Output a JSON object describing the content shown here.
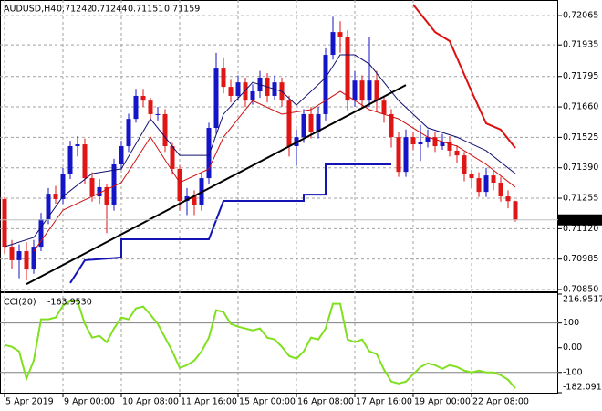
{
  "chart_data": [
    {
      "type": "candlestick",
      "title": "AUDUSD,H4",
      "x": [
        "5 Apr 2019",
        null,
        null,
        null,
        null,
        null,
        null,
        null,
        "9 Apr 00:00",
        null,
        null,
        null,
        null,
        null,
        null,
        null,
        "10 Apr 08:00",
        null,
        null,
        null,
        null,
        null,
        null,
        null,
        "11 Apr 16:00",
        null,
        null,
        null,
        null,
        null,
        null,
        null,
        "15 Apr 00:00",
        null,
        null,
        null,
        null,
        null,
        null,
        null,
        "16 Apr 08:00",
        null,
        null,
        null,
        null,
        null,
        null,
        null,
        "17 Apr 16:00",
        null,
        null,
        null,
        null,
        null,
        null,
        null,
        "19 Apr 00:00",
        null,
        null,
        null,
        null,
        null,
        null,
        null,
        "22 Apr 08:00",
        null,
        null,
        null,
        null,
        null,
        null
      ],
      "open": [
        0.71251,
        0.7104,
        0.7098,
        0.7102,
        0.70939,
        0.7104,
        0.71162,
        0.71275,
        0.71251,
        0.71364,
        0.71486,
        0.71494,
        0.71344,
        0.71263,
        0.71304,
        0.71223,
        0.71405,
        0.71486,
        0.71607,
        0.71709,
        0.71688,
        0.71628,
        0.71628,
        0.71486,
        0.71385,
        0.71243,
        0.71263,
        0.71223,
        0.71344,
        0.71567,
        0.7183,
        0.71749,
        0.71709,
        0.71769,
        0.71688,
        0.71729,
        0.7179,
        0.71709,
        0.71769,
        0.71688,
        0.71486,
        0.71526,
        0.71628,
        0.71547,
        0.71628,
        0.71891,
        0.71992,
        0.71972,
        0.71688,
        0.71777,
        0.71688,
        0.71777,
        0.71688,
        0.71628,
        0.71526,
        0.71372,
        0.71526,
        0.71494,
        0.71506,
        0.71526,
        0.71486,
        0.71506,
        0.71466,
        0.71445,
        0.71364,
        0.71344,
        0.71283,
        0.71356,
        0.71324,
        0.71263,
        0.71242
      ],
      "high": [
        0.7126,
        0.7107,
        0.7105,
        0.7106,
        0.7107,
        0.7119,
        0.713,
        0.7131,
        0.7139,
        0.7151,
        0.7153,
        0.7152,
        0.7137,
        0.7134,
        0.7132,
        0.7143,
        0.7151,
        0.7163,
        0.7174,
        0.7174,
        0.717,
        0.7166,
        0.7165,
        0.715,
        0.714,
        0.713,
        0.7129,
        0.7137,
        0.7159,
        0.719,
        0.7188,
        0.7178,
        0.718,
        0.7179,
        0.7176,
        0.7182,
        0.7181,
        0.718,
        0.7179,
        0.7171,
        0.7156,
        0.7165,
        0.7166,
        0.7166,
        0.7192,
        0.7206,
        0.7204,
        0.72,
        0.7182,
        0.718,
        0.7197,
        0.7182,
        0.7171,
        0.7165,
        0.7155,
        0.7156,
        0.7155,
        0.7158,
        0.7156,
        0.7155,
        0.7154,
        0.7153,
        0.7149,
        0.7146,
        0.7138,
        0.7137,
        0.7139,
        0.7138,
        0.7135,
        0.7129,
        0.71244
      ],
      "low": [
        0.7101,
        0.7094,
        0.709,
        0.7089,
        0.7092,
        0.7102,
        0.7114,
        0.7123,
        0.7123,
        0.7134,
        0.7144,
        0.7132,
        0.7124,
        0.7123,
        0.711,
        0.712,
        0.7138,
        0.7146,
        0.7159,
        0.7166,
        0.716,
        0.716,
        0.7146,
        0.7136,
        0.712,
        0.7118,
        0.7118,
        0.712,
        0.7132,
        0.7154,
        0.7172,
        0.7168,
        0.7169,
        0.7166,
        0.7167,
        0.717,
        0.7168,
        0.7169,
        0.7166,
        0.7144,
        0.714,
        0.715,
        0.7152,
        0.7152,
        0.716,
        0.7187,
        0.719,
        0.7164,
        0.7166,
        0.7166,
        0.7166,
        0.7164,
        0.7159,
        0.7148,
        0.7135,
        0.7135,
        0.7147,
        0.7142,
        0.7148,
        0.7146,
        0.7147,
        0.7144,
        0.7141,
        0.7133,
        0.713,
        0.7126,
        0.7126,
        0.7129,
        0.7124,
        0.7121,
        0.71151
      ],
      "close": [
        0.7104,
        0.7098,
        0.7102,
        0.70939,
        0.7104,
        0.71162,
        0.71275,
        0.71251,
        0.71364,
        0.71486,
        0.71494,
        0.71344,
        0.71263,
        0.71304,
        0.71223,
        0.71405,
        0.71486,
        0.71607,
        0.71709,
        0.71688,
        0.71628,
        0.71628,
        0.71486,
        0.71385,
        0.71243,
        0.71263,
        0.71223,
        0.71344,
        0.71567,
        0.7183,
        0.71749,
        0.71709,
        0.71769,
        0.71688,
        0.71729,
        0.7179,
        0.71709,
        0.71769,
        0.71688,
        0.71486,
        0.71526,
        0.71628,
        0.71547,
        0.71628,
        0.71891,
        0.71992,
        0.71972,
        0.71688,
        0.71777,
        0.71688,
        0.71777,
        0.71688,
        0.71628,
        0.71526,
        0.71372,
        0.71526,
        0.71494,
        0.71506,
        0.71526,
        0.71486,
        0.71506,
        0.71466,
        0.71445,
        0.71364,
        0.71344,
        0.71283,
        0.71356,
        0.71324,
        0.71263,
        0.71242,
        0.71159
      ],
      "up_color": "#1515c8",
      "down_color": "#e01515",
      "lines": [
        {
          "color": "#10106e",
          "width": 1,
          "x": [
            0,
            4,
            8,
            12,
            16,
            20,
            24,
            28,
            30,
            34,
            38,
            40,
            44,
            46,
            48,
            50,
            54,
            58,
            62,
            66,
            70
          ],
          "values": [
            0.7104,
            0.71081,
            0.71263,
            0.71364,
            0.71385,
            0.71607,
            0.71445,
            0.71445,
            0.71628,
            0.71769,
            0.71729,
            0.71668,
            0.7179,
            0.71891,
            0.71891,
            0.7185,
            0.71688,
            0.71567,
            0.71526,
            0.71466,
            0.71364
          ]
        },
        {
          "color": "#d01010",
          "width": 1,
          "x": [
            4,
            8,
            12,
            16,
            20,
            24,
            28,
            30,
            34,
            38,
            42,
            46,
            50,
            54,
            58,
            62,
            66,
            70
          ],
          "values": [
            0.7102,
            0.71202,
            0.71263,
            0.71324,
            0.71526,
            0.71324,
            0.71385,
            0.71526,
            0.71688,
            0.71628,
            0.71648,
            0.71729,
            0.71648,
            0.71607,
            0.71526,
            0.71486,
            0.71405,
            0.71304
          ]
        },
        {
          "color": "#dd1010",
          "width": 2,
          "x": [
            56,
            59,
            61,
            64,
            66,
            68,
            70
          ],
          "values": [
            0.72114,
            0.71992,
            0.71952,
            0.71729,
            0.71587,
            0.71559,
            0.71478
          ]
        },
        {
          "color": "#1414b4",
          "width": 2,
          "x": [
            9,
            11,
            16,
            16,
            28,
            30,
            41,
            41,
            44,
            44,
            53
          ],
          "values": [
            0.70879,
            0.7098,
            0.70992,
            0.71073,
            0.71073,
            0.71243,
            0.71243,
            0.71271,
            0.71271,
            0.71405,
            0.71405
          ]
        },
        {
          "color": "#000000",
          "width": 2,
          "x": [
            3,
            55
          ],
          "values": [
            0.70874,
            0.71757
          ]
        }
      ],
      "ylim": [
        0.70846,
        0.72118
      ],
      "yticks": [
        0.72065,
        0.71935,
        0.71795,
        {
          "value": 0.7166,
          "label": "0.71660"
        },
        0.71525,
        {
          "value": 0.7139,
          "label": "0.71390"
        },
        0.71255,
        {
          "value": 0.7112,
          "label": "0.71120"
        },
        0.70985,
        {
          "value": 0.7085,
          "label": "0.70850"
        }
      ],
      "grid": true
    },
    {
      "type": "line",
      "title": "CCI(20)",
      "current_label": "-163.9530",
      "color": "#80e020",
      "values": [
        11.1,
        3.7,
        -14.8,
        -125.9,
        -51.9,
        114.8,
        114.8,
        122.2,
        170.4,
        188.9,
        188.9,
        96.3,
        40.7,
        48.1,
        22.2,
        77.8,
        122.2,
        114.8,
        159.3,
        166.7,
        133.3,
        96.3,
        40.7,
        -14.8,
        -81.5,
        -70.4,
        -51.9,
        -14.8,
        40.7,
        151.9,
        144.4,
        96.3,
        85.2,
        77.8,
        70.4,
        77.8,
        40.7,
        33.3,
        3.7,
        -33.3,
        -44.4,
        -14.8,
        40.7,
        33.3,
        77.8,
        177.8,
        177.8,
        33.3,
        22.2,
        33.3,
        -14.8,
        -25.9,
        -88.9,
        -137.0,
        -144.4,
        -137.0,
        -107.4,
        -77.8,
        -63.0,
        -70.4,
        -85.2,
        -70.4,
        -77.8,
        -92.6,
        -100.0,
        -92.6,
        -100.0,
        -100.0,
        -111.1,
        -129.6,
        -163.953
      ],
      "ylim": [
        -182.0914,
        216.9517
      ],
      "yticks": [
        216.9517,
        100,
        {
          "value": 0,
          "label": "0.00"
        },
        -100,
        -182.0914
      ]
    }
  ]
}
